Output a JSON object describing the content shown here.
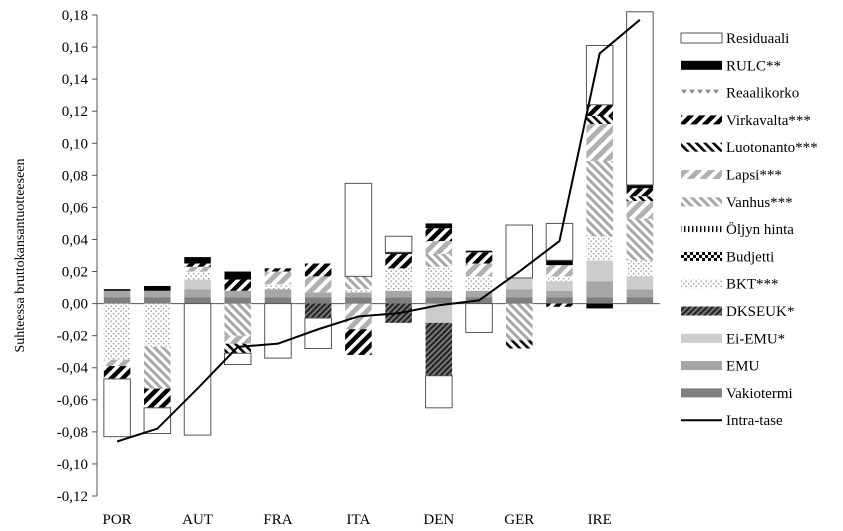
{
  "chart_data": {
    "type": "bar",
    "stacked": true,
    "ylabel": "Suhteessa bruttokansantuotteeseen",
    "ylim": [
      -0.12,
      0.18
    ],
    "yticks": [
      "-0,12",
      "-0,10",
      "-0,08",
      "-0,06",
      "-0,04",
      "-0,02",
      "0,00",
      "0,02",
      "0,04",
      "0,06",
      "0,08",
      "0,10",
      "0,12",
      "0,14",
      "0,16",
      "0,18"
    ],
    "categories": [
      "POR",
      "",
      "AUT",
      "",
      "FRA",
      "",
      "ITA",
      "",
      "DEN",
      "",
      "GER",
      "",
      "IRE",
      ""
    ],
    "x_tick_labels": [
      "POR",
      "AUT",
      "FRA",
      "ITA",
      "DEN",
      "GER",
      "IRE"
    ],
    "legend_position": "right",
    "grid": false,
    "series": [
      {
        "name": "Vakiotermi",
        "color": "#7f7f7f",
        "pattern": "solid",
        "values": [
          0.004,
          0.004,
          0.004,
          0.004,
          0.004,
          0.004,
          0.004,
          0.004,
          0.004,
          0.004,
          0.004,
          0.004,
          0.004,
          0.004
        ]
      },
      {
        "name": "EMU",
        "color": "#a6a6a6",
        "pattern": "solid",
        "values": [
          0.004,
          0.004,
          0.005,
          0.004,
          0.005,
          0.003,
          0.003,
          0.004,
          0.004,
          0.004,
          0.005,
          0.004,
          0.01,
          0.005
        ]
      },
      {
        "name": "Ei-EMU*",
        "color": "#cccccc",
        "pattern": "solid",
        "values": [
          0,
          0,
          0.006,
          0,
          0,
          0,
          0,
          0,
          -0.012,
          0,
          0.007,
          0.006,
          0.013,
          0.008
        ]
      },
      {
        "name": "DKSEUK*",
        "color": "#444444",
        "pattern": "diag-dense",
        "values": [
          0,
          0,
          0,
          0,
          0,
          -0.009,
          0,
          -0.012,
          -0.033,
          0,
          0,
          0,
          0,
          0
        ]
      },
      {
        "name": "BKT***",
        "color": "#bbbbbb",
        "pattern": "dots",
        "values": [
          -0.035,
          -0.027,
          0.005,
          0,
          0.003,
          0,
          0.002,
          0.014,
          0.015,
          0.009,
          0,
          0.003,
          0.015,
          0.01
        ]
      },
      {
        "name": "Budjetti",
        "color": "#000000",
        "pattern": "checker",
        "values": [
          0,
          0,
          0,
          0,
          0,
          0,
          0,
          0,
          0,
          0,
          0,
          0,
          0,
          0
        ]
      },
      {
        "name": "Öljyn hinta",
        "color": "#000000",
        "pattern": "vlines",
        "values": [
          0,
          0,
          0,
          0,
          0,
          0,
          0,
          0,
          0,
          0,
          0,
          0,
          0,
          0
        ]
      },
      {
        "name": "Vanhus***",
        "color": "#9a9a9a",
        "pattern": "diag-thin",
        "values": [
          0,
          -0.026,
          0,
          -0.02,
          0,
          0,
          0.008,
          0,
          0.008,
          0,
          -0.023,
          0,
          0.047,
          0.026
        ]
      },
      {
        "name": "Lapsi***",
        "color": "#aaaaaa",
        "pattern": "diag-wide",
        "values": [
          -0.004,
          0,
          0.003,
          -0.005,
          0.008,
          0.01,
          -0.016,
          0,
          0.008,
          0.008,
          0,
          0.007,
          0.023,
          0.011
        ]
      },
      {
        "name": "Luotonanto***",
        "color": "#000000",
        "pattern": "anti-diag",
        "values": [
          0,
          0,
          0,
          -0.006,
          0,
          0,
          0,
          0,
          0,
          0,
          -0.005,
          0,
          0.005,
          0.003
        ]
      },
      {
        "name": "Virkavalta***",
        "color": "#000000",
        "pattern": "anti-diag-bold",
        "values": [
          -0.008,
          -0.012,
          0.002,
          0.007,
          0.002,
          0.008,
          -0.016,
          0.009,
          0.008,
          0.007,
          0,
          -0.002,
          0.007,
          0.005
        ]
      },
      {
        "name": "Reaalikorko",
        "color": "#999999",
        "pattern": "triangles",
        "values": [
          0,
          0,
          0,
          0,
          0,
          0,
          0,
          0,
          0,
          0,
          0,
          0,
          0,
          0
        ]
      },
      {
        "name": "RULC**",
        "color": "#000000",
        "pattern": "solid",
        "values": [
          0.001,
          0.003,
          0.004,
          0.005,
          0,
          0,
          0,
          0.001,
          0.003,
          0.001,
          0,
          0.003,
          -0.003,
          0.002
        ]
      },
      {
        "name": "Residuaali",
        "color": "#ffffff",
        "pattern": "outline",
        "values": [
          -0.036,
          -0.016,
          -0.082,
          -0.007,
          -0.034,
          -0.019,
          0.058,
          0.01,
          -0.02,
          -0.018,
          0.033,
          0.023,
          0.037,
          0.108
        ]
      }
    ],
    "line_series": {
      "name": "Intra-tase",
      "color": "#000000",
      "values": [
        -0.086,
        -0.078,
        -0.053,
        -0.027,
        -0.025,
        -0.016,
        -0.008,
        -0.006,
        -0.001,
        0.002,
        0.02,
        0.039,
        0.156,
        0.177
      ]
    }
  }
}
